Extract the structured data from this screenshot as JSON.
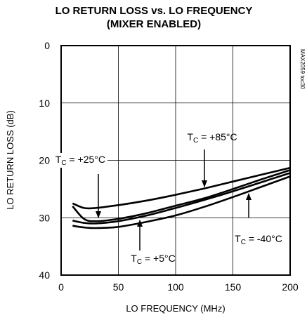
{
  "chart_data": {
    "type": "line",
    "title": [
      "LO RETURN LOSS vs. LO FREQUENCY",
      "(MIXER ENABLED)"
    ],
    "xlabel": "LO FREQUENCY (MHz)",
    "ylabel": "LO RETURN LOSS (dB)",
    "xlim": [
      0,
      200
    ],
    "ylim": [
      0,
      40
    ],
    "y_inverted": true,
    "grid": true,
    "x_ticks": [
      0,
      50,
      100,
      150,
      200
    ],
    "y_ticks": [
      0,
      10,
      20,
      30,
      40
    ],
    "part_note": "MAX2059 toc30",
    "series": [
      {
        "name": "TC = +85°C",
        "x": [
          10,
          20,
          30,
          50,
          75,
          100,
          125,
          150,
          175,
          200
        ],
        "y": [
          27.5,
          28.3,
          28.3,
          27.8,
          27.0,
          26.0,
          24.9,
          23.7,
          22.5,
          21.3
        ]
      },
      {
        "name": "TC = +25°C",
        "x": [
          10,
          20,
          30,
          50,
          75,
          100,
          125,
          150,
          175,
          200
        ],
        "y": [
          28.0,
          30.2,
          30.6,
          30.2,
          29.2,
          27.9,
          26.6,
          25.0,
          23.3,
          21.7
        ]
      },
      {
        "name": "TC = +5°C",
        "x": [
          10,
          20,
          30,
          50,
          75,
          100,
          125,
          150,
          175,
          200
        ],
        "y": [
          30.5,
          30.9,
          31.0,
          30.6,
          29.6,
          28.3,
          26.9,
          25.4,
          23.8,
          22.2
        ]
      },
      {
        "name": "TC = -40°C",
        "x": [
          10,
          20,
          30,
          50,
          75,
          100,
          125,
          150,
          175,
          200
        ],
        "y": [
          31.4,
          31.7,
          31.8,
          31.6,
          30.7,
          29.6,
          28.1,
          26.4,
          24.6,
          22.8
        ]
      }
    ],
    "annotations": [
      {
        "main": "T",
        "sub": "C",
        "rest": " = +25°C",
        "target": "TC = +25°C"
      },
      {
        "main": "T",
        "sub": "C",
        "rest": " = +85°C",
        "target": "TC = +85°C"
      },
      {
        "main": "T",
        "sub": "C",
        "rest": " = +5°C",
        "target": "TC = +5°C"
      },
      {
        "main": "T",
        "sub": "C",
        "rest": " = -40°C",
        "target": "TC = -40°C"
      }
    ]
  }
}
